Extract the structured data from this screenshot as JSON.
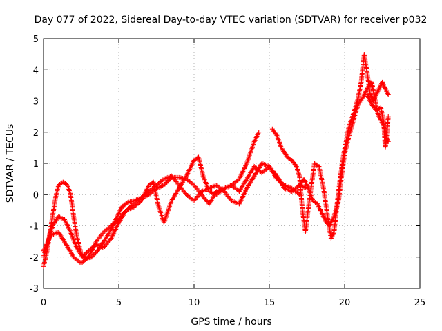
{
  "chart_data": {
    "type": "scatter",
    "title": "Day 077 of 2022, Sidereal Day-to-day VTEC variation (SDTVAR) for receiver p032",
    "xlabel": "GPS time / hours",
    "ylabel": "SDTVAR / TECUs",
    "xlim": [
      0,
      25
    ],
    "ylim": [
      -3,
      5
    ],
    "x_ticks": [
      "0",
      "5",
      "10",
      "15",
      "20",
      "25"
    ],
    "y_ticks": [
      "-3",
      "-2",
      "-1",
      "0",
      "1",
      "2",
      "3",
      "4",
      "5"
    ],
    "grid": true,
    "marker": "+",
    "marker_color": "#ff0000",
    "series": [
      {
        "name": "track-1",
        "points": [
          [
            0.0,
            -2.3
          ],
          [
            0.2,
            -1.9
          ],
          [
            0.4,
            -1.3
          ],
          [
            0.6,
            -0.7
          ],
          [
            0.8,
            -0.1
          ],
          [
            1.0,
            0.3
          ],
          [
            1.3,
            0.4
          ],
          [
            1.6,
            0.3
          ],
          [
            1.8,
            0.0
          ],
          [
            2.0,
            -0.7
          ],
          [
            2.2,
            -1.3
          ],
          [
            2.5,
            -1.9
          ],
          [
            2.8,
            -2.05
          ],
          [
            3.2,
            -2.0
          ],
          [
            3.6,
            -1.8
          ],
          [
            4.0,
            -1.5
          ],
          [
            4.4,
            -1.2
          ],
          [
            4.8,
            -0.8
          ],
          [
            5.2,
            -0.4
          ],
          [
            5.6,
            -0.25
          ],
          [
            6.0,
            -0.2
          ],
          [
            6.5,
            -0.1
          ],
          [
            7.0,
            0.0
          ],
          [
            7.5,
            0.2
          ],
          [
            8.0,
            0.3
          ],
          [
            8.5,
            0.55
          ],
          [
            9.0,
            0.55
          ],
          [
            9.5,
            0.5
          ],
          [
            10.0,
            0.3
          ],
          [
            10.5,
            0.0
          ],
          [
            11.0,
            -0.3
          ],
          [
            11.5,
            0.1
          ],
          [
            12.0,
            0.2
          ],
          [
            12.5,
            0.3
          ],
          [
            13.0,
            0.5
          ],
          [
            13.5,
            1.0
          ],
          [
            14.0,
            1.7
          ],
          [
            14.3,
            2.0
          ]
        ]
      },
      {
        "name": "track-2",
        "points": [
          [
            0.0,
            -2.0
          ],
          [
            0.3,
            -1.5
          ],
          [
            0.6,
            -1.0
          ],
          [
            1.0,
            -0.7
          ],
          [
            1.4,
            -0.8
          ],
          [
            1.8,
            -1.2
          ],
          [
            2.2,
            -1.7
          ],
          [
            2.6,
            -2.0
          ],
          [
            3.0,
            -1.8
          ],
          [
            3.5,
            -1.6
          ],
          [
            4.0,
            -1.7
          ],
          [
            4.5,
            -1.4
          ],
          [
            5.0,
            -0.9
          ],
          [
            5.5,
            -0.5
          ],
          [
            6.0,
            -0.4
          ],
          [
            6.5,
            -0.2
          ],
          [
            7.0,
            0.3
          ],
          [
            7.3,
            0.4
          ],
          [
            7.6,
            -0.3
          ],
          [
            8.0,
            -0.9
          ],
          [
            8.5,
            -0.2
          ],
          [
            9.0,
            0.2
          ],
          [
            9.5,
            0.6
          ],
          [
            10.0,
            1.1
          ],
          [
            10.3,
            1.2
          ],
          [
            10.6,
            0.6
          ],
          [
            11.0,
            0.1
          ],
          [
            11.5,
            0.0
          ],
          [
            12.0,
            0.2
          ],
          [
            12.5,
            0.3
          ],
          [
            13.0,
            0.1
          ],
          [
            13.5,
            0.5
          ],
          [
            14.0,
            0.9
          ],
          [
            14.5,
            0.7
          ],
          [
            15.0,
            0.9
          ],
          [
            15.5,
            0.5
          ],
          [
            16.0,
            0.3
          ],
          [
            16.5,
            0.2
          ],
          [
            17.0,
            0.0
          ]
        ]
      },
      {
        "name": "track-3",
        "points": [
          [
            0.0,
            -1.8
          ],
          [
            0.5,
            -1.3
          ],
          [
            1.0,
            -1.2
          ],
          [
            1.5,
            -1.6
          ],
          [
            2.0,
            -2.0
          ],
          [
            2.5,
            -2.2
          ],
          [
            3.0,
            -2.0
          ],
          [
            3.5,
            -1.5
          ],
          [
            4.0,
            -1.2
          ],
          [
            4.5,
            -1.0
          ],
          [
            5.0,
            -0.8
          ],
          [
            5.5,
            -0.5
          ],
          [
            6.0,
            -0.3
          ],
          [
            6.5,
            -0.1
          ],
          [
            7.0,
            0.1
          ],
          [
            7.5,
            0.3
          ],
          [
            8.0,
            0.5
          ],
          [
            8.5,
            0.6
          ],
          [
            9.0,
            0.3
          ],
          [
            9.5,
            0.0
          ],
          [
            10.0,
            -0.2
          ],
          [
            10.5,
            0.1
          ],
          [
            11.0,
            0.2
          ],
          [
            11.5,
            0.3
          ],
          [
            12.0,
            0.1
          ],
          [
            12.5,
            -0.2
          ],
          [
            13.0,
            -0.3
          ],
          [
            13.5,
            0.2
          ],
          [
            14.0,
            0.6
          ],
          [
            14.5,
            1.0
          ],
          [
            15.0,
            0.9
          ],
          [
            15.5,
            0.6
          ],
          [
            16.0,
            0.2
          ],
          [
            16.5,
            0.1
          ],
          [
            17.0,
            0.3
          ],
          [
            17.5,
            0.2
          ]
        ]
      },
      {
        "name": "track-4",
        "points": [
          [
            15.2,
            2.1
          ],
          [
            15.5,
            1.9
          ],
          [
            15.8,
            1.5
          ],
          [
            16.2,
            1.2
          ],
          [
            16.5,
            1.1
          ],
          [
            16.8,
            0.9
          ],
          [
            17.0,
            0.6
          ],
          [
            17.2,
            -0.5
          ],
          [
            17.4,
            -1.2
          ],
          [
            17.6,
            -0.4
          ],
          [
            17.8,
            0.3
          ],
          [
            18.0,
            1.0
          ],
          [
            18.3,
            0.9
          ],
          [
            18.6,
            0.2
          ],
          [
            18.9,
            -0.8
          ],
          [
            19.1,
            -1.4
          ],
          [
            19.3,
            -1.2
          ],
          [
            19.5,
            -0.3
          ],
          [
            19.7,
            0.5
          ],
          [
            19.9,
            1.2
          ],
          [
            20.1,
            1.7
          ],
          [
            20.3,
            2.2
          ],
          [
            20.6,
            2.6
          ],
          [
            20.9,
            3.1
          ],
          [
            21.1,
            3.6
          ],
          [
            21.3,
            4.5
          ],
          [
            21.5,
            3.9
          ],
          [
            21.7,
            3.2
          ],
          [
            21.9,
            3.0
          ],
          [
            22.2,
            3.3
          ],
          [
            22.5,
            3.6
          ],
          [
            22.7,
            3.4
          ],
          [
            22.9,
            3.2
          ]
        ]
      },
      {
        "name": "track-5",
        "points": [
          [
            17.0,
            0.3
          ],
          [
            17.3,
            0.5
          ],
          [
            17.6,
            0.2
          ],
          [
            17.9,
            -0.2
          ],
          [
            18.2,
            -0.3
          ],
          [
            18.5,
            -0.6
          ],
          [
            18.8,
            -0.9
          ],
          [
            19.0,
            -1.0
          ],
          [
            19.3,
            -0.7
          ],
          [
            19.6,
            -0.2
          ],
          [
            19.8,
            0.6
          ],
          [
            20.0,
            1.3
          ],
          [
            20.3,
            1.9
          ],
          [
            20.6,
            2.4
          ],
          [
            20.9,
            2.9
          ],
          [
            21.2,
            3.1
          ],
          [
            21.5,
            3.4
          ],
          [
            21.8,
            3.6
          ],
          [
            22.0,
            3.1
          ],
          [
            22.2,
            2.6
          ],
          [
            22.4,
            2.4
          ],
          [
            22.6,
            2.2
          ],
          [
            22.8,
            1.8
          ],
          [
            22.9,
            1.7
          ]
        ]
      },
      {
        "name": "track-6",
        "points": [
          [
            21.5,
            3.2
          ],
          [
            21.8,
            2.9
          ],
          [
            22.1,
            2.7
          ],
          [
            22.4,
            2.8
          ],
          [
            22.6,
            2.3
          ],
          [
            22.7,
            1.5
          ],
          [
            22.8,
            1.9
          ],
          [
            22.9,
            2.5
          ]
        ]
      }
    ]
  }
}
